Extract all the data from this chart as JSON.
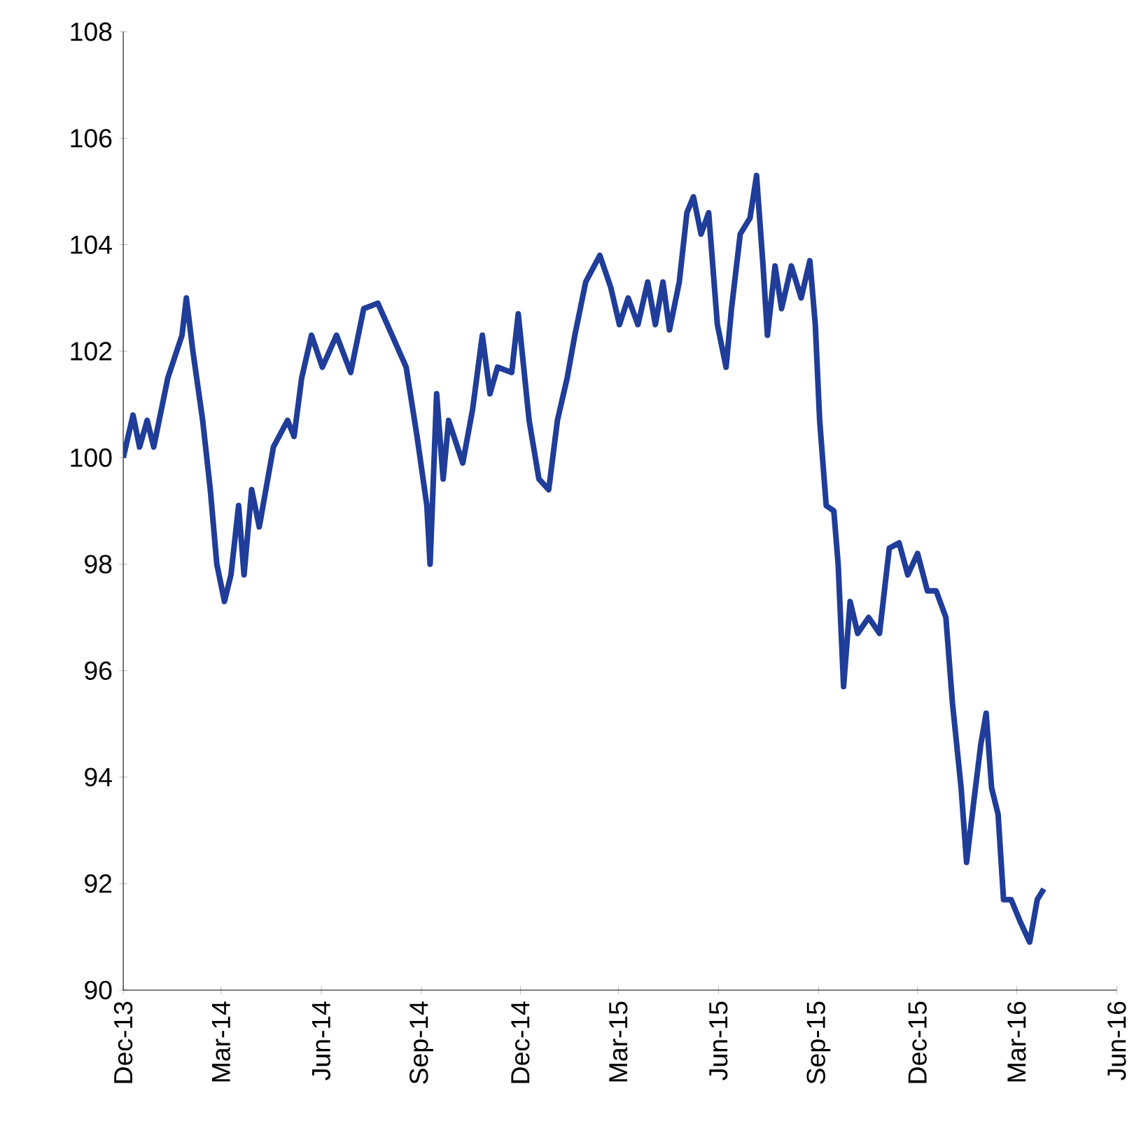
{
  "chart_data": {
    "type": "line",
    "x": [
      "2013-12-01",
      "2013-12-10",
      "2013-12-16",
      "2013-12-23",
      "2013-12-29",
      "2014-01-11",
      "2014-01-24",
      "2014-01-28",
      "2014-02-03",
      "2014-02-12",
      "2014-02-19",
      "2014-02-25",
      "2014-03-04",
      "2014-03-10",
      "2014-03-17",
      "2014-03-22",
      "2014-03-29",
      "2014-04-05",
      "2014-04-18",
      "2014-05-01",
      "2014-05-07",
      "2014-05-14",
      "2014-05-23",
      "2014-06-02",
      "2014-06-15",
      "2014-06-28",
      "2014-07-10",
      "2014-07-23",
      "2014-08-05",
      "2014-08-18",
      "2014-08-28",
      "2014-09-06",
      "2014-09-09",
      "2014-09-15",
      "2014-09-21",
      "2014-09-26",
      "2014-10-09",
      "2014-10-18",
      "2014-10-27",
      "2014-11-03",
      "2014-11-10",
      "2014-11-23",
      "2014-11-29",
      "2014-12-09",
      "2014-12-18",
      "2014-12-27",
      "2015-01-04",
      "2015-01-13",
      "2015-01-20",
      "2015-01-30",
      "2015-02-12",
      "2015-02-22",
      "2015-03-02",
      "2015-03-10",
      "2015-03-19",
      "2015-03-28",
      "2015-04-04",
      "2015-04-11",
      "2015-04-17",
      "2015-04-26",
      "2015-05-03",
      "2015-05-09",
      "2015-05-16",
      "2015-05-23",
      "2015-05-31",
      "2015-06-08",
      "2015-06-13",
      "2015-06-21",
      "2015-06-30",
      "2015-07-06",
      "2015-07-12",
      "2015-07-16",
      "2015-07-23",
      "2015-07-29",
      "2015-08-07",
      "2015-08-16",
      "2015-08-24",
      "2015-08-29",
      "2015-09-02",
      "2015-09-08",
      "2015-09-15",
      "2015-09-19",
      "2015-09-24",
      "2015-09-30",
      "2015-10-07",
      "2015-10-17",
      "2015-10-27",
      "2015-11-05",
      "2015-11-14",
      "2015-11-22",
      "2015-12-01",
      "2015-12-10",
      "2015-12-18",
      "2015-12-27",
      "2016-01-02",
      "2016-01-10",
      "2016-01-15",
      "2016-01-22",
      "2016-01-28",
      "2016-02-02",
      "2016-02-07",
      "2016-02-13",
      "2016-02-18",
      "2016-02-25",
      "2016-03-04",
      "2016-03-13",
      "2016-03-20",
      "2016-03-26"
    ],
    "series": [
      {
        "color": "#1f3d99",
        "values": [
          100.0,
          100.8,
          100.2,
          100.7,
          100.2,
          101.5,
          102.3,
          103.0,
          102.0,
          100.7,
          99.4,
          98.0,
          97.3,
          97.8,
          99.1,
          97.8,
          99.4,
          98.7,
          100.2,
          100.7,
          100.4,
          101.5,
          102.3,
          101.7,
          102.3,
          101.6,
          102.8,
          102.9,
          102.3,
          101.7,
          100.4,
          99.1,
          98.0,
          101.2,
          99.6,
          100.7,
          99.9,
          100.9,
          102.3,
          101.2,
          101.7,
          101.6,
          102.7,
          100.7,
          99.6,
          99.4,
          100.7,
          101.5,
          102.3,
          103.3,
          103.8,
          103.2,
          102.5,
          103.0,
          102.5,
          103.3,
          102.5,
          103.3,
          102.4,
          103.3,
          104.6,
          104.9,
          104.2,
          104.6,
          102.5,
          101.7,
          102.8,
          104.2,
          104.5,
          105.3,
          103.6,
          102.3,
          103.6,
          102.8,
          103.6,
          103.0,
          103.7,
          102.5,
          100.7,
          99.1,
          99.0,
          98.0,
          95.7,
          97.3,
          96.7,
          97.0,
          96.7,
          98.3,
          98.4,
          97.8,
          98.2,
          97.5,
          97.5,
          97.0,
          95.4,
          93.8,
          92.4,
          93.6,
          94.6,
          95.2,
          93.8,
          93.3,
          91.7,
          91.7,
          91.3,
          90.9,
          91.7,
          91.9
        ]
      }
    ],
    "xlim": [
      "2013-12-01",
      "2016-06-01"
    ],
    "xticks": [
      {
        "value": "2013-12-01",
        "label": "Dec-13"
      },
      {
        "value": "2014-03-01",
        "label": "Mar-14"
      },
      {
        "value": "2014-06-01",
        "label": "Jun-14"
      },
      {
        "value": "2014-09-01",
        "label": "Sep-14"
      },
      {
        "value": "2014-12-01",
        "label": "Dec-14"
      },
      {
        "value": "2015-03-01",
        "label": "Mar-15"
      },
      {
        "value": "2015-06-01",
        "label": "Jun-15"
      },
      {
        "value": "2015-09-01",
        "label": "Sep-15"
      },
      {
        "value": "2015-12-01",
        "label": "Dec-15"
      },
      {
        "value": "2016-03-01",
        "label": "Mar-16"
      },
      {
        "value": "2016-06-01",
        "label": "Jun-16"
      }
    ],
    "ylim": [
      90,
      108
    ],
    "yticks": [
      90,
      92,
      94,
      96,
      98,
      100,
      102,
      104,
      106,
      108
    ],
    "line_style": "solid",
    "marker": "none",
    "grid": false
  }
}
